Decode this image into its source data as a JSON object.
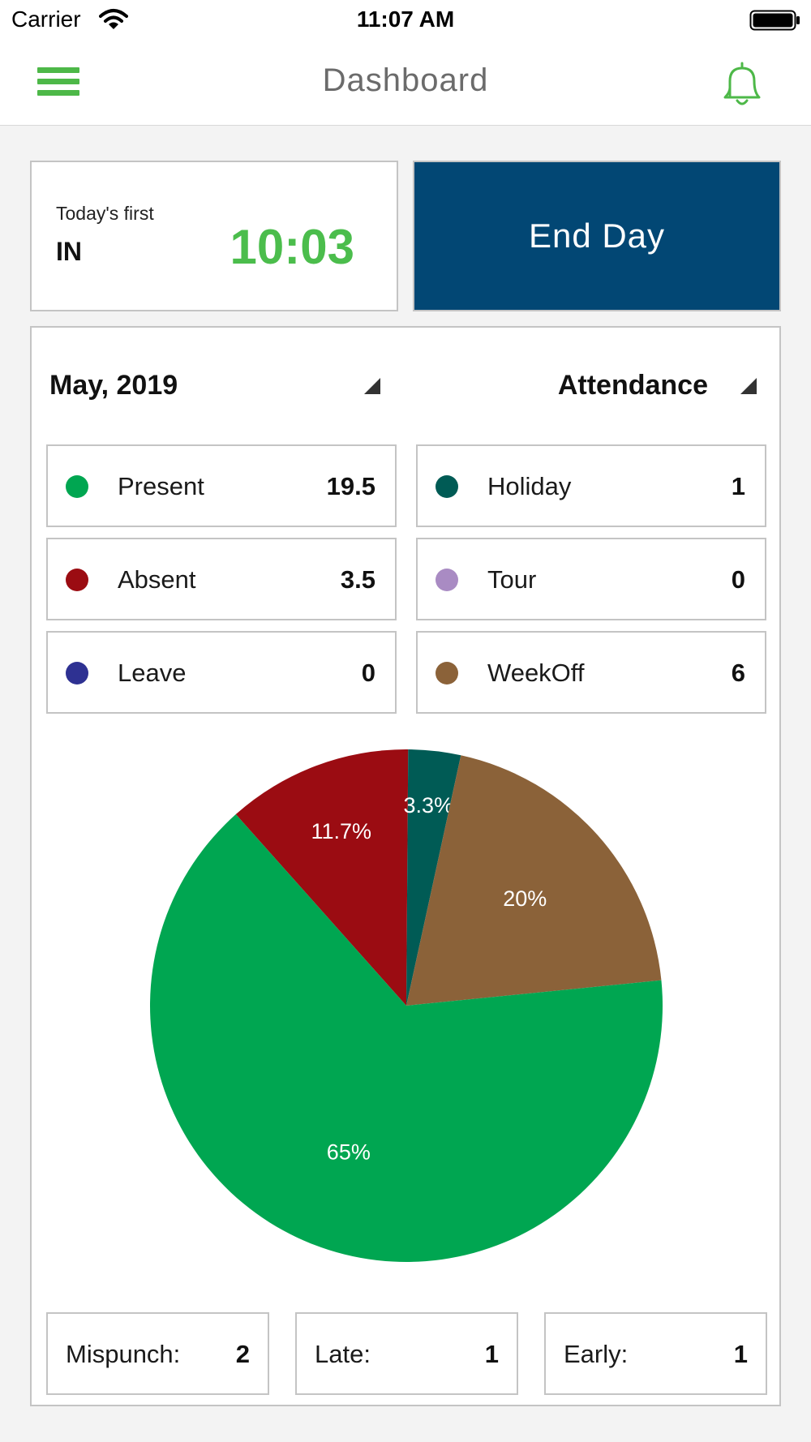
{
  "status_bar": {
    "carrier": "Carrier",
    "time": "11:07 AM"
  },
  "nav": {
    "title": "Dashboard",
    "menu_icon": "hamburger-menu-icon",
    "bell_icon": "bell-icon",
    "accent_color": "#4db848"
  },
  "first_in": {
    "caption": "Today's first",
    "label": "IN",
    "time": "10:03",
    "time_color": "#4bbd4c"
  },
  "end_day": {
    "label": "End Day",
    "color": "#024774"
  },
  "filters": {
    "month": "May, 2019",
    "type": "Attendance"
  },
  "stats": [
    {
      "label": "Present",
      "value": "19.5",
      "color": "#00a651"
    },
    {
      "label": "Holiday",
      "value": "1",
      "color": "#005b55"
    },
    {
      "label": "Absent",
      "value": "3.5",
      "color": "#9b0c12"
    },
    {
      "label": "Tour",
      "value": "0",
      "color": "#a98bc3"
    },
    {
      "label": "Leave",
      "value": "0",
      "color": "#2e3192"
    },
    {
      "label": "WeekOff",
      "value": "6",
      "color": "#8b6239"
    }
  ],
  "chart_data": {
    "type": "pie",
    "slices": [
      {
        "label": "Absent",
        "value": 11.7,
        "text": "11.7%",
        "color": "#9b0c12"
      },
      {
        "label": "Holiday",
        "value": 3.3,
        "text": "3.3%",
        "color": "#005b55"
      },
      {
        "label": "WeekOff",
        "value": 20,
        "text": "20%",
        "color": "#8b6239"
      },
      {
        "label": "Present",
        "value": 65,
        "text": "65%",
        "color": "#00a651"
      }
    ]
  },
  "counts": [
    {
      "label": "Mispunch:",
      "value": "2"
    },
    {
      "label": "Late:",
      "value": "1"
    },
    {
      "label": "Early:",
      "value": "1"
    }
  ]
}
